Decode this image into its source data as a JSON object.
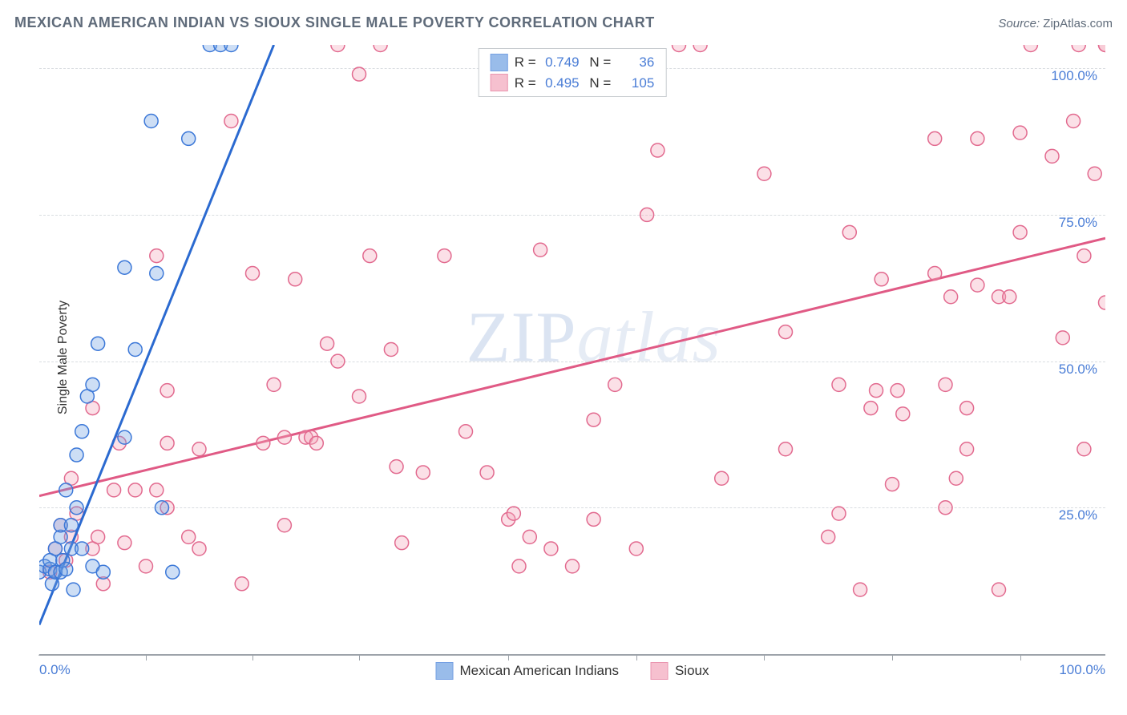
{
  "header": {
    "title": "MEXICAN AMERICAN INDIAN VS SIOUX SINGLE MALE POVERTY CORRELATION CHART",
    "source_label": "Source:",
    "source_value": "ZipAtlas.com"
  },
  "ylabel": "Single Male Poverty",
  "watermark": {
    "part1": "ZIP",
    "part2": "atlas"
  },
  "chart": {
    "type": "scatter",
    "background_color": "#ffffff",
    "grid_color": "#d9dde1",
    "axis_color": "#9da3aa",
    "tick_label_color": "#4a7dd6",
    "tick_fontsize": 17,
    "xlim": [
      0,
      100
    ],
    "ylim": [
      0,
      104
    ],
    "y_gridlines": [
      25,
      50,
      75,
      100
    ],
    "y_tick_labels": [
      "25.0%",
      "50.0%",
      "75.0%",
      "100.0%"
    ],
    "x_tick_min": "0.0%",
    "x_tick_max": "100.0%",
    "x_minor_ticks": [
      10,
      20,
      30,
      44,
      56,
      68,
      80,
      92
    ],
    "marker_radius": 8.5,
    "marker_stroke_width": 1.5,
    "fill_opacity": 0.35,
    "line_width": 3
  },
  "series": {
    "mexican": {
      "label": "Mexican American Indians",
      "color": "#6fa0e2",
      "stroke": "#3c78d8",
      "line_color": "#2b6ad0",
      "R": "0.749",
      "N": "36",
      "trend": {
        "x1": 0,
        "y1": 5,
        "x2": 22,
        "y2": 104
      },
      "points": [
        [
          0,
          14
        ],
        [
          0.5,
          15
        ],
        [
          1,
          14.5
        ],
        [
          1,
          16
        ],
        [
          1.2,
          12
        ],
        [
          1.5,
          18
        ],
        [
          1.5,
          14
        ],
        [
          2,
          20
        ],
        [
          2,
          14
        ],
        [
          2,
          22
        ],
        [
          2.2,
          16
        ],
        [
          2.5,
          28
        ],
        [
          2.5,
          14.5
        ],
        [
          3,
          18
        ],
        [
          3,
          22
        ],
        [
          3.2,
          11
        ],
        [
          3.5,
          25
        ],
        [
          3.5,
          34
        ],
        [
          4,
          38
        ],
        [
          4,
          18
        ],
        [
          4.5,
          44
        ],
        [
          5,
          46
        ],
        [
          5,
          15
        ],
        [
          5.5,
          53
        ],
        [
          6,
          14
        ],
        [
          8,
          37
        ],
        [
          8,
          66
        ],
        [
          9,
          52
        ],
        [
          10.5,
          91
        ],
        [
          11,
          65
        ],
        [
          12.5,
          14
        ],
        [
          14,
          88
        ],
        [
          16,
          104
        ],
        [
          17,
          104
        ],
        [
          18,
          104
        ],
        [
          11.5,
          25
        ]
      ]
    },
    "sioux": {
      "label": "Sioux",
      "color": "#f3a6bb",
      "stroke": "#e26a8f",
      "line_color": "#e05a85",
      "R": "0.495",
      "N": "105",
      "trend": {
        "x1": 0,
        "y1": 27,
        "x2": 100,
        "y2": 71
      },
      "points": [
        [
          1,
          14
        ],
        [
          1.5,
          18
        ],
        [
          2,
          22
        ],
        [
          2.5,
          16
        ],
        [
          3,
          20
        ],
        [
          3.5,
          24
        ],
        [
          5,
          42
        ],
        [
          5,
          18
        ],
        [
          5.5,
          20
        ],
        [
          6,
          12
        ],
        [
          7,
          28
        ],
        [
          7.5,
          36
        ],
        [
          8,
          19
        ],
        [
          9,
          28
        ],
        [
          10,
          15
        ],
        [
          12,
          36
        ],
        [
          12,
          25
        ],
        [
          14,
          20
        ],
        [
          18,
          91
        ],
        [
          20,
          65
        ],
        [
          21,
          36
        ],
        [
          22,
          46
        ],
        [
          23,
          37
        ],
        [
          24,
          64
        ],
        [
          25,
          37
        ],
        [
          25.5,
          37
        ],
        [
          27,
          53
        ],
        [
          28,
          104
        ],
        [
          30,
          99
        ],
        [
          30,
          44
        ],
        [
          31,
          68
        ],
        [
          32,
          104
        ],
        [
          33,
          52
        ],
        [
          33.5,
          32
        ],
        [
          34,
          19
        ],
        [
          38,
          68
        ],
        [
          40,
          38
        ],
        [
          44,
          23
        ],
        [
          44.5,
          24
        ],
        [
          45,
          15
        ],
        [
          46,
          20
        ],
        [
          47,
          69
        ],
        [
          48,
          18
        ],
        [
          52,
          40
        ],
        [
          54,
          46
        ],
        [
          57,
          75
        ],
        [
          58,
          86
        ],
        [
          60,
          104
        ],
        [
          62,
          104
        ],
        [
          68,
          82
        ],
        [
          70,
          55
        ],
        [
          74,
          20
        ],
        [
          75,
          24
        ],
        [
          76,
          72
        ],
        [
          77,
          11
        ],
        [
          78,
          42
        ],
        [
          78.5,
          45
        ],
        [
          79,
          64
        ],
        [
          80,
          29
        ],
        [
          80.5,
          45
        ],
        [
          81,
          41
        ],
        [
          84,
          65
        ],
        [
          85,
          46
        ],
        [
          85.5,
          61
        ],
        [
          87,
          35
        ],
        [
          87,
          42
        ],
        [
          88,
          63
        ],
        [
          90,
          61
        ],
        [
          91,
          61
        ],
        [
          92,
          72
        ],
        [
          92,
          89
        ],
        [
          93,
          104
        ],
        [
          95,
          85
        ],
        [
          96,
          54
        ],
        [
          97,
          91
        ],
        [
          97.5,
          104
        ],
        [
          98,
          68
        ],
        [
          98,
          35
        ],
        [
          99,
          82
        ],
        [
          100,
          104
        ],
        [
          100,
          104
        ],
        [
          100,
          60
        ],
        [
          90,
          11
        ],
        [
          85,
          25
        ],
        [
          12,
          45
        ],
        [
          11,
          28
        ],
        [
          11,
          68
        ],
        [
          15,
          18
        ],
        [
          23,
          22
        ],
        [
          26,
          36
        ],
        [
          28,
          50
        ],
        [
          19,
          12
        ],
        [
          42,
          31
        ],
        [
          52,
          23
        ],
        [
          64,
          30
        ],
        [
          3,
          30
        ],
        [
          75,
          46
        ],
        [
          56,
          18
        ],
        [
          50,
          15
        ],
        [
          36,
          31
        ],
        [
          84,
          88
        ],
        [
          88,
          88
        ],
        [
          86,
          30
        ],
        [
          70,
          35
        ],
        [
          15,
          35
        ]
      ]
    }
  },
  "legend_bottom": {
    "item1": "Mexican American Indians",
    "item2": "Sioux"
  }
}
